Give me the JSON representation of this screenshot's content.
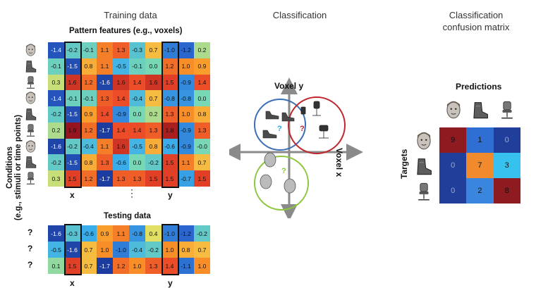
{
  "titles": {
    "training": "Training data",
    "classification": "Classification",
    "confusion": [
      "Classification",
      "confusion matrix"
    ]
  },
  "labels": {
    "pattern_features": "Pattern features (e.g., voxels)",
    "conditions": [
      "Conditions",
      "(e.g., stimuli or time points)"
    ],
    "testing": "Testing data",
    "x": "x",
    "y": "y",
    "dots": "⋮",
    "voxel_y": "Voxel y",
    "voxel_x": "Voxel x",
    "predictions": "Predictions",
    "targets": "Targets",
    "question": "?"
  },
  "colors": {
    "blue": "#3b6fb6",
    "red": "#c0272d",
    "green": "#8dc63f",
    "axis": "#8a8a8a",
    "q_blue": "#29a8e0",
    "q_red": "#c0272d",
    "q_green": "#8dc63f"
  },
  "condition_icons": [
    "face-icon",
    "boot-icon",
    "chair-icon",
    "face-icon",
    "boot-icon",
    "chair-icon",
    "face-icon",
    "boot-icon",
    "chair-icon"
  ],
  "training_matrix": [
    [
      "-1.4",
      "-0.2",
      "-0.1",
      "1.1",
      "1.3",
      "-0.3",
      "0.7",
      "-1.0",
      "-1.2",
      "0.2"
    ],
    [
      "-0.1",
      "-1.5",
      "0.8",
      "1.1",
      "-0.5",
      "-0.1",
      "0.0",
      "1.2",
      "1.0",
      "0.9"
    ],
    [
      "0.3",
      "1.6",
      "1.2",
      "-1.6",
      "1.6",
      "1.4",
      "1.6",
      "1.5",
      "-0.9",
      "1.4"
    ],
    [
      "-1.4",
      "-0.1",
      "-0.1",
      "1.3",
      "1.4",
      "-0.4",
      "0.7",
      "-0.8",
      "-0.8",
      "0.0"
    ],
    [
      "-0.2",
      "-1.5",
      "0.9",
      "1.4",
      "-0.9",
      "0.0",
      "0.2",
      "1.3",
      "1.0",
      "0.8"
    ],
    [
      "0.2",
      "1.9",
      "1.2",
      "-1.7",
      "1.4",
      "1.4",
      "1.3",
      "1.8",
      "-0.9",
      "1.3"
    ],
    [
      "-1.6",
      "-0.2",
      "-0.4",
      "1.1",
      "1.6",
      "-0.5",
      "0.8",
      "-0.6",
      "-0.9",
      "-0.0"
    ],
    [
      "-0.2",
      "-1.5",
      "0.8",
      "1.3",
      "-0.6",
      "0.0",
      "-0.2",
      "1.5",
      "1.1",
      "0.7"
    ],
    [
      "0.3",
      "1.5",
      "1.2",
      "-1.7",
      "1.3",
      "1.3",
      "1.5",
      "1.5",
      "-0.7",
      "1.5"
    ]
  ],
  "testing_matrix": [
    [
      "-1.6",
      "-0.3",
      "-0.6",
      "0.9",
      "1.1",
      "-0.8",
      "0.4",
      "-1.0",
      "-1.2",
      "-0.2"
    ],
    [
      "-0.5",
      "-1.6",
      "0.7",
      "1.0",
      "-1.0",
      "-0.4",
      "-0.2",
      "1.0",
      "0.8",
      "0.7"
    ],
    [
      "0.1",
      "1.5",
      "0.7",
      "-1.7",
      "1.2",
      "1.0",
      "1.3",
      "1.4",
      "-1.1",
      "1.0"
    ]
  ],
  "confusion_matrix": {
    "values": [
      [
        "9",
        "1",
        "0"
      ],
      [
        "0",
        "7",
        "3"
      ],
      [
        "0",
        "2",
        "8"
      ]
    ],
    "prediction_icons": [
      "face-icon",
      "boot-icon",
      "chair-icon"
    ],
    "target_icons": [
      "face-icon",
      "boot-icon",
      "chair-icon"
    ]
  }
}
